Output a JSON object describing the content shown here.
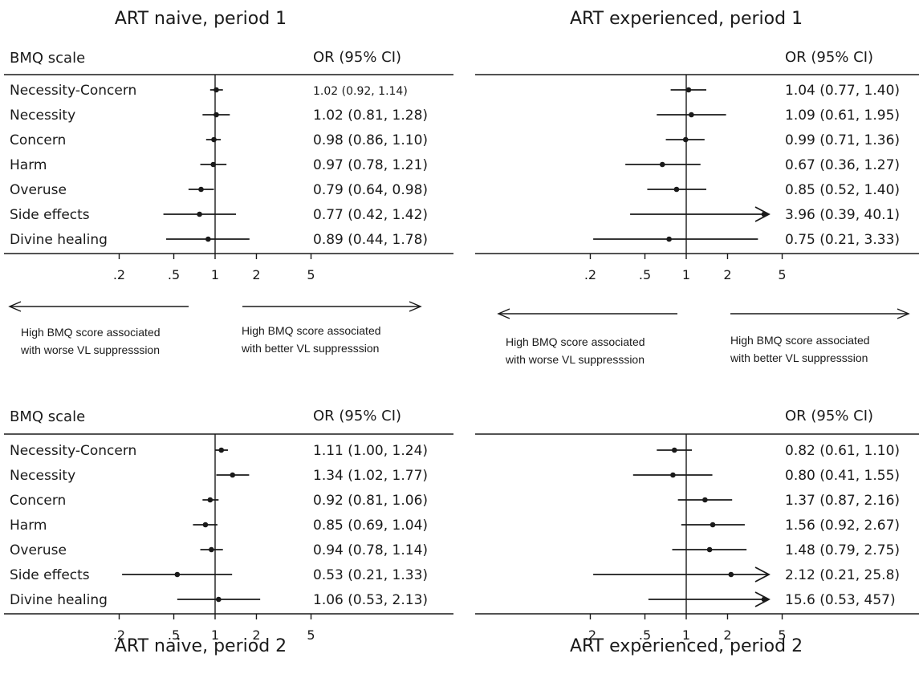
{
  "chart_data": [
    {
      "type": "forest",
      "title": "ART naive, period 1",
      "label_header": "BMQ scale",
      "value_header": "OR (95% CI)",
      "x_scale": "log",
      "x_ticks": [
        ".2",
        ".5",
        "1",
        "2",
        "5"
      ],
      "left_note": "High BMQ score associated with worse VL suppresssion",
      "right_note": "High BMQ score associated with better VL suppresssion",
      "rows": [
        {
          "label": "Necessity-Concern",
          "or": 1.02,
          "lo": 0.92,
          "hi": 1.14,
          "text": "1.02 (0.92, 1.14)"
        },
        {
          "label": "Necessity",
          "or": 1.02,
          "lo": 0.81,
          "hi": 1.28,
          "text": "1.02 (0.81, 1.28)"
        },
        {
          "label": "Concern",
          "or": 0.98,
          "lo": 0.86,
          "hi": 1.1,
          "text": "0.98 (0.86, 1.10)"
        },
        {
          "label": "Harm",
          "or": 0.97,
          "lo": 0.78,
          "hi": 1.21,
          "text": "0.97 (0.78, 1.21)"
        },
        {
          "label": "Overuse",
          "or": 0.79,
          "lo": 0.64,
          "hi": 0.98,
          "text": "0.79 (0.64, 0.98)"
        },
        {
          "label": "Side effects",
          "or": 0.77,
          "lo": 0.42,
          "hi": 1.42,
          "text": "0.77 (0.42, 1.42)"
        },
        {
          "label": "Divine healing",
          "or": 0.89,
          "lo": 0.44,
          "hi": 1.78,
          "text": "0.89 (0.44, 1.78)"
        }
      ]
    },
    {
      "type": "forest",
      "title": "ART experienced, period 1",
      "label_header": "",
      "value_header": "OR (95% CI)",
      "x_scale": "log",
      "x_ticks": [
        ".2",
        ".5",
        "1",
        "2",
        "5"
      ],
      "left_note": "High BMQ score associated with worse VL suppresssion",
      "right_note": "High BMQ score associated with better VL suppresssion",
      "rows": [
        {
          "label": "",
          "or": 1.04,
          "lo": 0.77,
          "hi": 1.4,
          "text": "1.04 (0.77, 1.40)"
        },
        {
          "label": "",
          "or": 1.09,
          "lo": 0.61,
          "hi": 1.95,
          "text": "1.09 (0.61, 1.95)"
        },
        {
          "label": "",
          "or": 0.99,
          "lo": 0.71,
          "hi": 1.36,
          "text": "0.99 (0.71, 1.36)"
        },
        {
          "label": "",
          "or": 0.67,
          "lo": 0.36,
          "hi": 1.27,
          "text": "0.67 (0.36, 1.27)"
        },
        {
          "label": "",
          "or": 0.85,
          "lo": 0.52,
          "hi": 1.4,
          "text": "0.85 (0.52, 1.40)"
        },
        {
          "label": "",
          "or": 3.96,
          "lo": 0.39,
          "hi": 40.1,
          "text": "3.96 (0.39, 40.1)"
        },
        {
          "label": "",
          "or": 0.75,
          "lo": 0.21,
          "hi": 3.33,
          "text": "0.75 (0.21, 3.33)"
        }
      ]
    },
    {
      "type": "forest",
      "title": "ART naive, period 2",
      "label_header": "BMQ scale",
      "value_header": "OR (95% CI)",
      "x_scale": "log",
      "x_ticks": [
        ".2",
        ".5",
        "1",
        "2",
        "5"
      ],
      "rows": [
        {
          "label": "Necessity-Concern",
          "or": 1.11,
          "lo": 1.0,
          "hi": 1.24,
          "text": "1.11 (1.00, 1.24)"
        },
        {
          "label": "Necessity",
          "or": 1.34,
          "lo": 1.02,
          "hi": 1.77,
          "text": "1.34 (1.02, 1.77)"
        },
        {
          "label": "Concern",
          "or": 0.92,
          "lo": 0.81,
          "hi": 1.06,
          "text": "0.92 (0.81, 1.06)"
        },
        {
          "label": "Harm",
          "or": 0.85,
          "lo": 0.69,
          "hi": 1.04,
          "text": "0.85 (0.69, 1.04)"
        },
        {
          "label": "Overuse",
          "or": 0.94,
          "lo": 0.78,
          "hi": 1.14,
          "text": "0.94 (0.78, 1.14)"
        },
        {
          "label": "Side effects",
          "or": 0.53,
          "lo": 0.21,
          "hi": 1.33,
          "text": "0.53 (0.21, 1.33)"
        },
        {
          "label": "Divine healing",
          "or": 1.06,
          "lo": 0.53,
          "hi": 2.13,
          "text": "1.06 (0.53, 2.13)"
        }
      ]
    },
    {
      "type": "forest",
      "title": "ART experienced, period 2",
      "label_header": "",
      "value_header": "OR (95% CI)",
      "x_scale": "log",
      "x_ticks": [
        ".2",
        ".5",
        "1",
        "2",
        "5"
      ],
      "rows": [
        {
          "label": "",
          "or": 0.82,
          "lo": 0.61,
          "hi": 1.1,
          "text": "0.82 (0.61, 1.10)"
        },
        {
          "label": "",
          "or": 0.8,
          "lo": 0.41,
          "hi": 1.55,
          "text": "0.80 (0.41, 1.55)"
        },
        {
          "label": "",
          "or": 1.37,
          "lo": 0.87,
          "hi": 2.16,
          "text": "1.37 (0.87, 2.16)"
        },
        {
          "label": "",
          "or": 1.56,
          "lo": 0.92,
          "hi": 2.67,
          "text": "1.56 (0.92, 2.67)"
        },
        {
          "label": "",
          "or": 1.48,
          "lo": 0.79,
          "hi": 2.75,
          "text": "1.48 (0.79, 2.75)"
        },
        {
          "label": "",
          "or": 2.12,
          "lo": 0.21,
          "hi": 25.8,
          "text": "2.12 (0.21, 25.8)"
        },
        {
          "label": "",
          "or": 15.6,
          "lo": 0.53,
          "hi": 457,
          "text": "15.6 (0.53, 457)"
        }
      ]
    }
  ]
}
